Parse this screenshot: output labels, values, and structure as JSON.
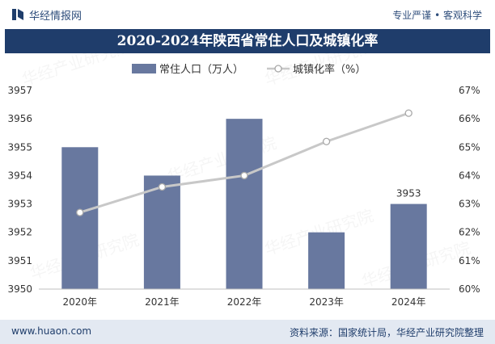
{
  "header": {
    "brand": "华经情报网",
    "slogan": "专业严谨 • 客观科学"
  },
  "title": "2020-2024年陕西省常住人口及城镇化率",
  "footer": {
    "site": "www.huaon.com",
    "source": "资料来源：国家统计局，华经产业研究院整理"
  },
  "watermark": "华经产业研究院",
  "colors": {
    "bar": "#68789f",
    "line": "#c8c8c8",
    "title_bg": "#1f3d6b"
  },
  "chart_data": {
    "type": "bar",
    "categories": [
      "2020年",
      "2021年",
      "2022年",
      "2023年",
      "2024年"
    ],
    "series": [
      {
        "name": "常住人口（万人）",
        "type": "bar",
        "axis": "left",
        "values": [
          3955,
          3954,
          3956,
          3952,
          3953
        ]
      },
      {
        "name": "城镇化率（%）",
        "type": "line",
        "axis": "right",
        "values": [
          62.7,
          63.6,
          64.0,
          65.2,
          66.2
        ]
      }
    ],
    "data_labels": [
      {
        "category": "2024年",
        "text": "3953"
      }
    ],
    "ylim_left": [
      3950,
      3957
    ],
    "yticks_left": [
      "3950",
      "3951",
      "3952",
      "3953",
      "3954",
      "3955",
      "3956",
      "3957"
    ],
    "ylim_right": [
      60,
      67
    ],
    "yticks_right": [
      "60%",
      "61%",
      "62%",
      "63%",
      "64%",
      "65%",
      "66%",
      "67%"
    ],
    "legend_position": "top-center",
    "grid": false
  }
}
